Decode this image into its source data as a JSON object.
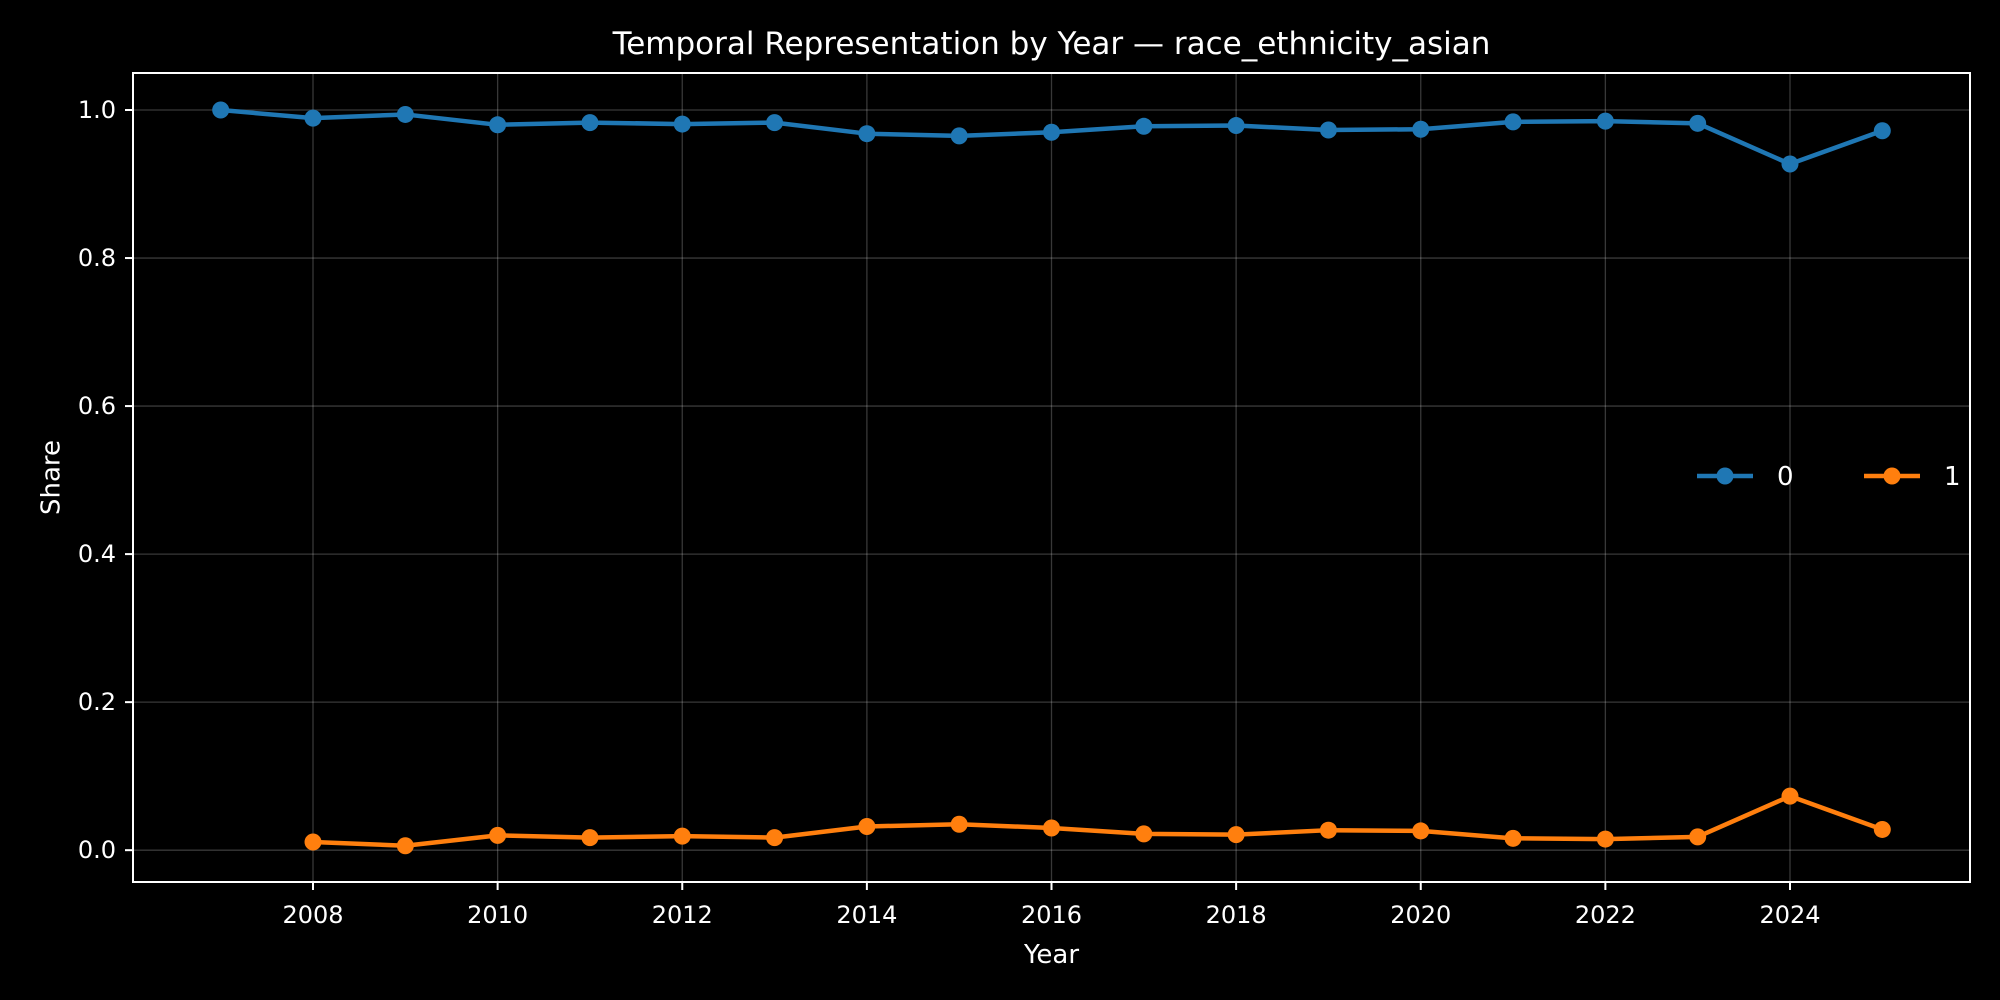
{
  "chart_data": {
    "type": "line",
    "title": "Temporal Representation by Year — race_ethnicity_asian",
    "xlabel": "Year",
    "ylabel": "Share",
    "xlim": [
      2006.05,
      2025.95
    ],
    "ylim": [
      -0.043,
      1.05
    ],
    "xticks": [
      2008,
      2010,
      2012,
      2014,
      2016,
      2018,
      2020,
      2022,
      2024
    ],
    "xtick_labels": [
      "2008",
      "2010",
      "2012",
      "2014",
      "2016",
      "2018",
      "2020",
      "2022",
      "2024"
    ],
    "yticks": [
      0.0,
      0.2,
      0.4,
      0.6,
      0.8,
      1.0
    ],
    "ytick_labels": [
      "0.0",
      "0.2",
      "0.4",
      "0.6",
      "0.8",
      "1.0"
    ],
    "grid": true,
    "legend_position": "center-right",
    "background": "#000000",
    "series": [
      {
        "name": "0",
        "color": "#1f77b4",
        "x": [
          2007,
          2008,
          2009,
          2010,
          2011,
          2012,
          2013,
          2014,
          2015,
          2016,
          2017,
          2018,
          2019,
          2020,
          2021,
          2022,
          2023,
          2024,
          2025
        ],
        "y": [
          1.0,
          0.989,
          0.994,
          0.98,
          0.983,
          0.981,
          0.983,
          0.968,
          0.965,
          0.97,
          0.978,
          0.979,
          0.973,
          0.974,
          0.984,
          0.985,
          0.982,
          0.927,
          0.972
        ]
      },
      {
        "name": "1",
        "color": "#ff7f0e",
        "x": [
          2008,
          2009,
          2010,
          2011,
          2012,
          2013,
          2014,
          2015,
          2016,
          2017,
          2018,
          2019,
          2020,
          2021,
          2022,
          2023,
          2024,
          2025
        ],
        "y": [
          0.011,
          0.006,
          0.02,
          0.017,
          0.019,
          0.017,
          0.032,
          0.035,
          0.03,
          0.022,
          0.021,
          0.027,
          0.026,
          0.016,
          0.015,
          0.018,
          0.073,
          0.028
        ]
      }
    ]
  }
}
